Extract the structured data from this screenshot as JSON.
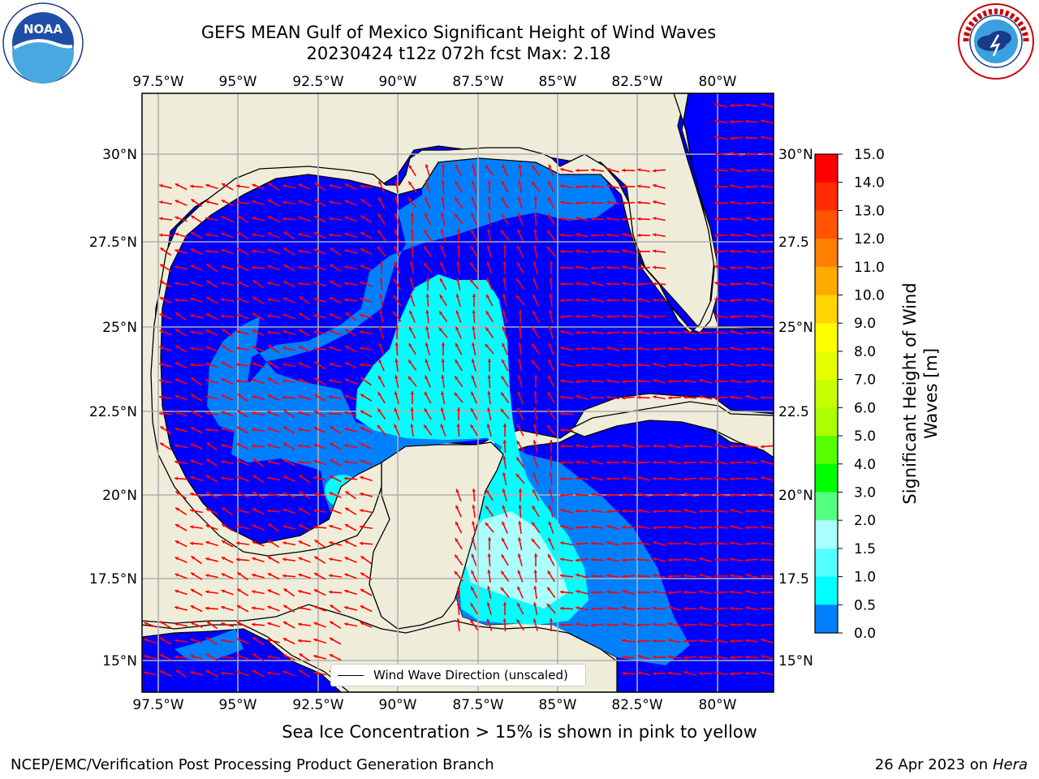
{
  "title": {
    "line1": "GEFS MEAN Gulf of Mexico Significant Height of Wind Waves",
    "line2": "20230424 t12z 072h fcst   Max: 2.18"
  },
  "map": {
    "lon_ticks": [
      "97.5°W",
      "95°W",
      "92.5°W",
      "90°W",
      "87.5°W",
      "85°W",
      "82.5°W",
      "80°W"
    ],
    "lat_ticks_left": [
      "30°N",
      "27.5°N",
      "25°N",
      "22.5°N",
      "20°N",
      "17.5°N",
      "15°N"
    ],
    "lat_ticks_right": [
      "30°N",
      "27.5",
      "25°N",
      "22.5",
      "20°N",
      "17.5",
      "15°N"
    ],
    "legend_label": "Wind Wave Direction (unscaled)",
    "colors": {
      "land": "#efedda",
      "ocean_low": "#0000ff",
      "ocean_mid": "#0080ff",
      "ocean_high": "#00ffff",
      "arrow": "#ff0000",
      "grid": "#b0b0b0"
    }
  },
  "colorbar": {
    "label": "Significant Height of Wind Waves [m]",
    "label_line1": "Significant Height of Wind",
    "label_line2": "Waves [m]",
    "ticks": [
      "15.0",
      "14.0",
      "13.0",
      "12.0",
      "11.0",
      "10.0",
      "9.0",
      "8.0",
      "7.0",
      "6.0",
      "5.0",
      "4.0",
      "3.0",
      "2.0",
      "1.5",
      "1.0",
      "0.5",
      "0.0"
    ],
    "colors": [
      "#ff0000",
      "#ff2a00",
      "#ff5500",
      "#ff8000",
      "#ffaa00",
      "#ffd400",
      "#ffff00",
      "#e6ff00",
      "#c8ff00",
      "#aaff00",
      "#55ff00",
      "#00ff00",
      "#55ff80",
      "#aaffff",
      "#55ffff",
      "#00ffff",
      "#0080ff",
      "#0000ff"
    ]
  },
  "logos": {
    "left": "noaa-logo",
    "right": "nws-logo"
  },
  "footer": {
    "note": "Sea Ice Concentration > 15% is shown in pink to yellow",
    "left": "NCEP/EMC/Verification Post Processing Product Generation Branch",
    "right_date": "26 Apr 2023 on ",
    "right_host": "Hera"
  }
}
